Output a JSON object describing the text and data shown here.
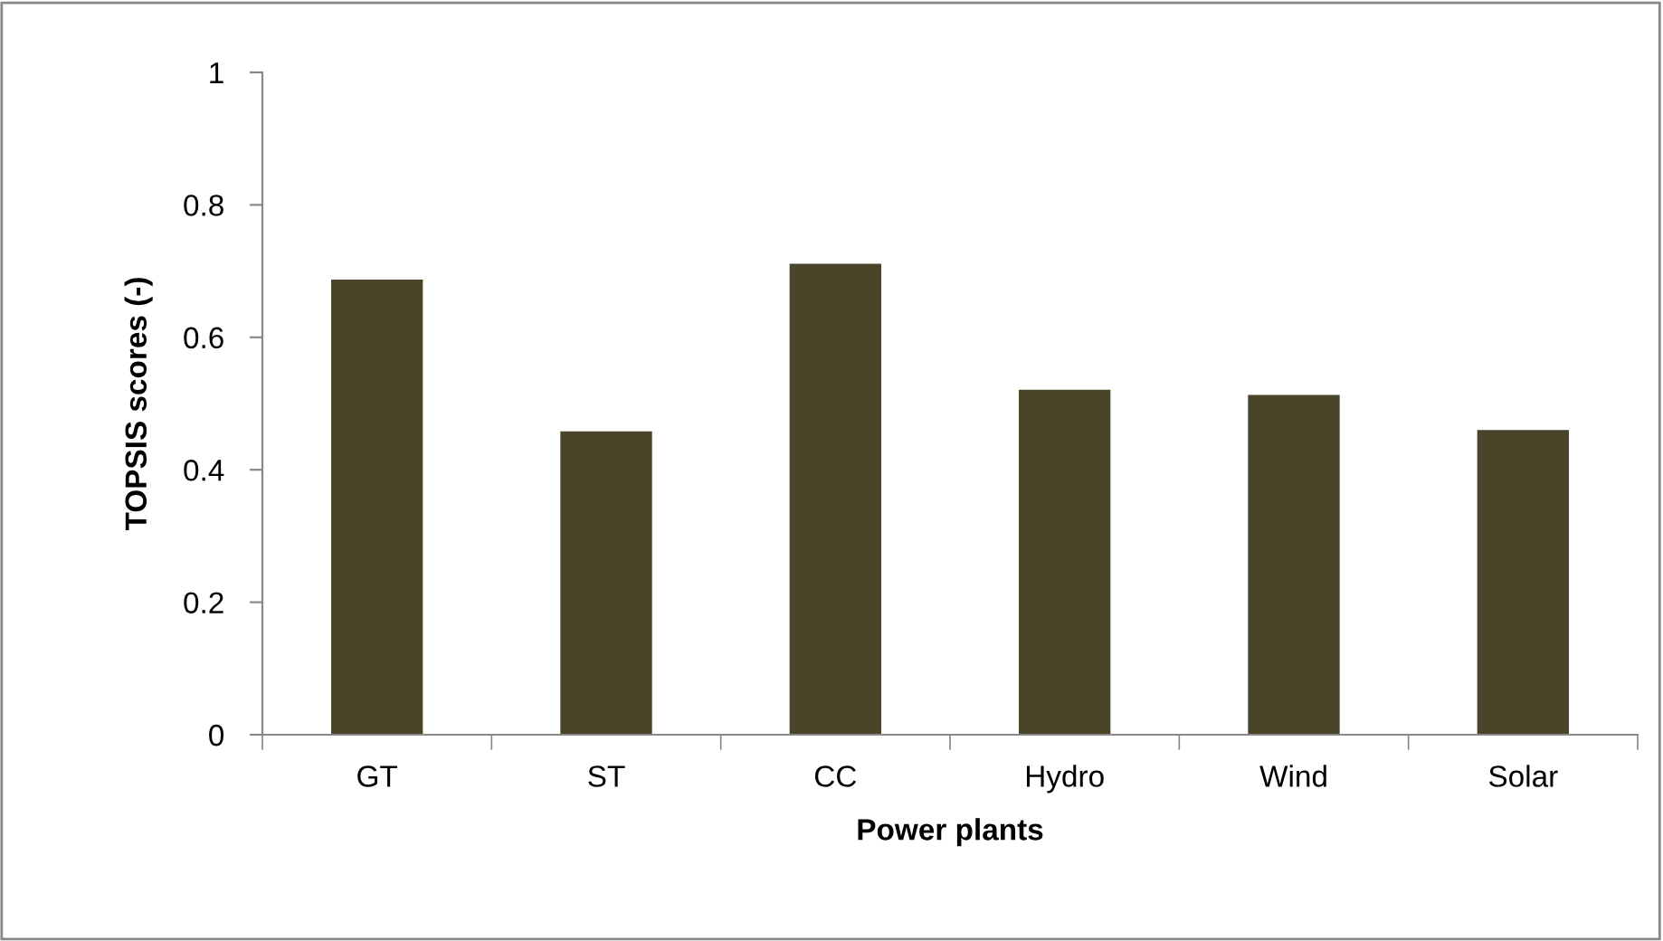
{
  "chart_data": {
    "type": "bar",
    "xlabel": "Power plants",
    "ylabel": "TOPSIS scores (-)",
    "categories": [
      "GT",
      "ST",
      "CC",
      "Hydro",
      "Wind",
      "Solar"
    ],
    "values": [
      0.687,
      0.458,
      0.711,
      0.521,
      0.513,
      0.46
    ],
    "color": "#4a4429",
    "ylim": [
      0,
      1
    ],
    "yticks": [
      0,
      {
        "value": 0.2,
        "label": "0.2"
      },
      {
        "value": 0.4,
        "label": "0.4"
      },
      {
        "value": 0.6,
        "label": "0.6"
      },
      {
        "value": 0.8,
        "label": "0.8"
      },
      1
    ],
    "grid": false,
    "legend": false
  }
}
